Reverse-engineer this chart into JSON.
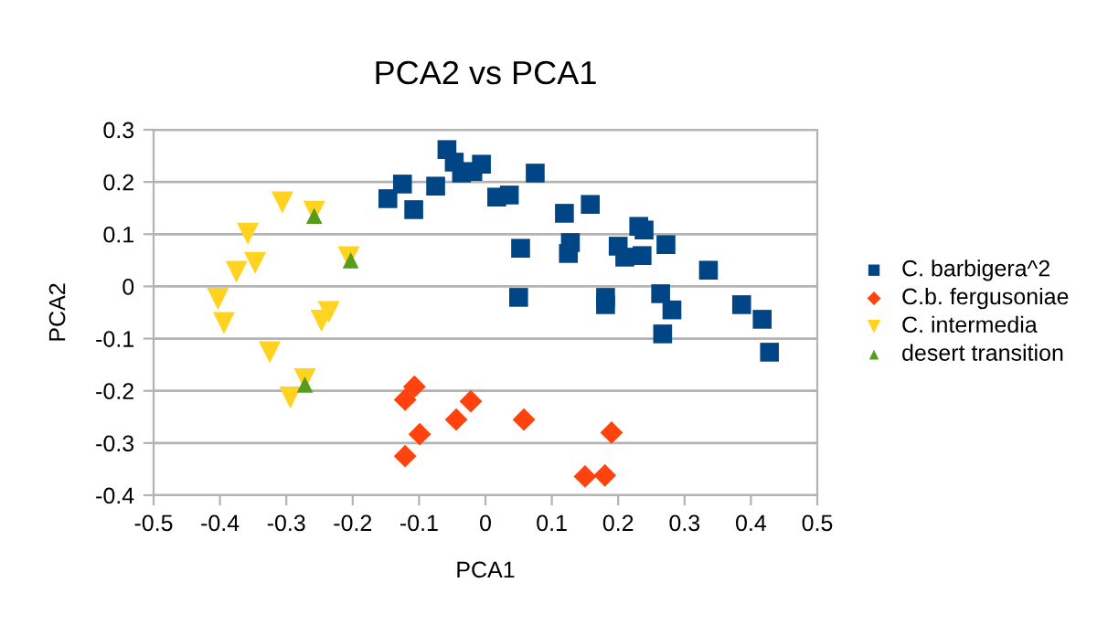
{
  "chart_data": {
    "type": "scatter",
    "title": "PCA2 vs PCA1",
    "xlabel": "PCA1",
    "ylabel": "PCA2",
    "xlim": [
      -0.5,
      0.5
    ],
    "xticks": [
      -0.5,
      -0.4,
      -0.3,
      -0.2,
      -0.1,
      0,
      0.1,
      0.2,
      0.3,
      0.4,
      0.5
    ],
    "ylim": [
      -0.4,
      0.3
    ],
    "yticks": [
      -0.4,
      -0.3,
      -0.2,
      -0.1,
      0,
      0.1,
      0.2,
      0.3
    ],
    "grid": "y",
    "legend": "right",
    "series": [
      {
        "name": "C. barbigera^2",
        "color": "#004586",
        "marker": "square",
        "x": [
          -0.147,
          -0.125,
          -0.108,
          -0.075,
          -0.058,
          -0.047,
          -0.036,
          -0.019,
          -0.006,
          0.017,
          0.036,
          0.075,
          0.053,
          0.05,
          0.119,
          0.128,
          0.125,
          0.158,
          0.2,
          0.21,
          0.231,
          0.239,
          0.236,
          0.272,
          0.181,
          0.181,
          0.264,
          0.281,
          0.267,
          0.336,
          0.386,
          0.417,
          0.428
        ],
        "values": [
          0.168,
          0.196,
          0.147,
          0.192,
          0.262,
          0.238,
          0.217,
          0.22,
          0.234,
          0.171,
          0.175,
          0.217,
          0.073,
          -0.021,
          0.14,
          0.084,
          0.063,
          0.157,
          0.077,
          0.056,
          0.115,
          0.108,
          0.059,
          0.08,
          -0.021,
          -0.035,
          -0.014,
          -0.045,
          -0.091,
          0.031,
          -0.035,
          -0.063,
          -0.126
        ]
      },
      {
        "name": "C.b. fergusoniae",
        "color": "#ff420e",
        "marker": "diamond",
        "x": [
          -0.121,
          -0.107,
          -0.099,
          -0.121,
          -0.044,
          -0.022,
          0.058,
          0.19,
          0.15,
          0.18
        ],
        "values": [
          -0.217,
          -0.192,
          -0.283,
          -0.325,
          -0.255,
          -0.22,
          -0.255,
          -0.28,
          -0.364,
          -0.362
        ]
      },
      {
        "name": "C. intermedia",
        "color": "#ffd320",
        "marker": "triangle_down",
        "x": [
          -0.306,
          -0.258,
          -0.358,
          -0.347,
          -0.375,
          -0.206,
          -0.403,
          -0.394,
          -0.236,
          -0.247,
          -0.325,
          -0.272,
          -0.294
        ],
        "values": [
          0.161,
          0.143,
          0.101,
          0.045,
          0.028,
          0.056,
          -0.024,
          -0.07,
          -0.049,
          -0.066,
          -0.126,
          -0.178,
          -0.213
        ]
      },
      {
        "name": "desert transition",
        "color": "#579d1c",
        "marker": "triangle",
        "x": [
          -0.258,
          -0.203,
          -0.272
        ],
        "values": [
          0.135,
          0.05,
          -0.188
        ]
      }
    ]
  }
}
